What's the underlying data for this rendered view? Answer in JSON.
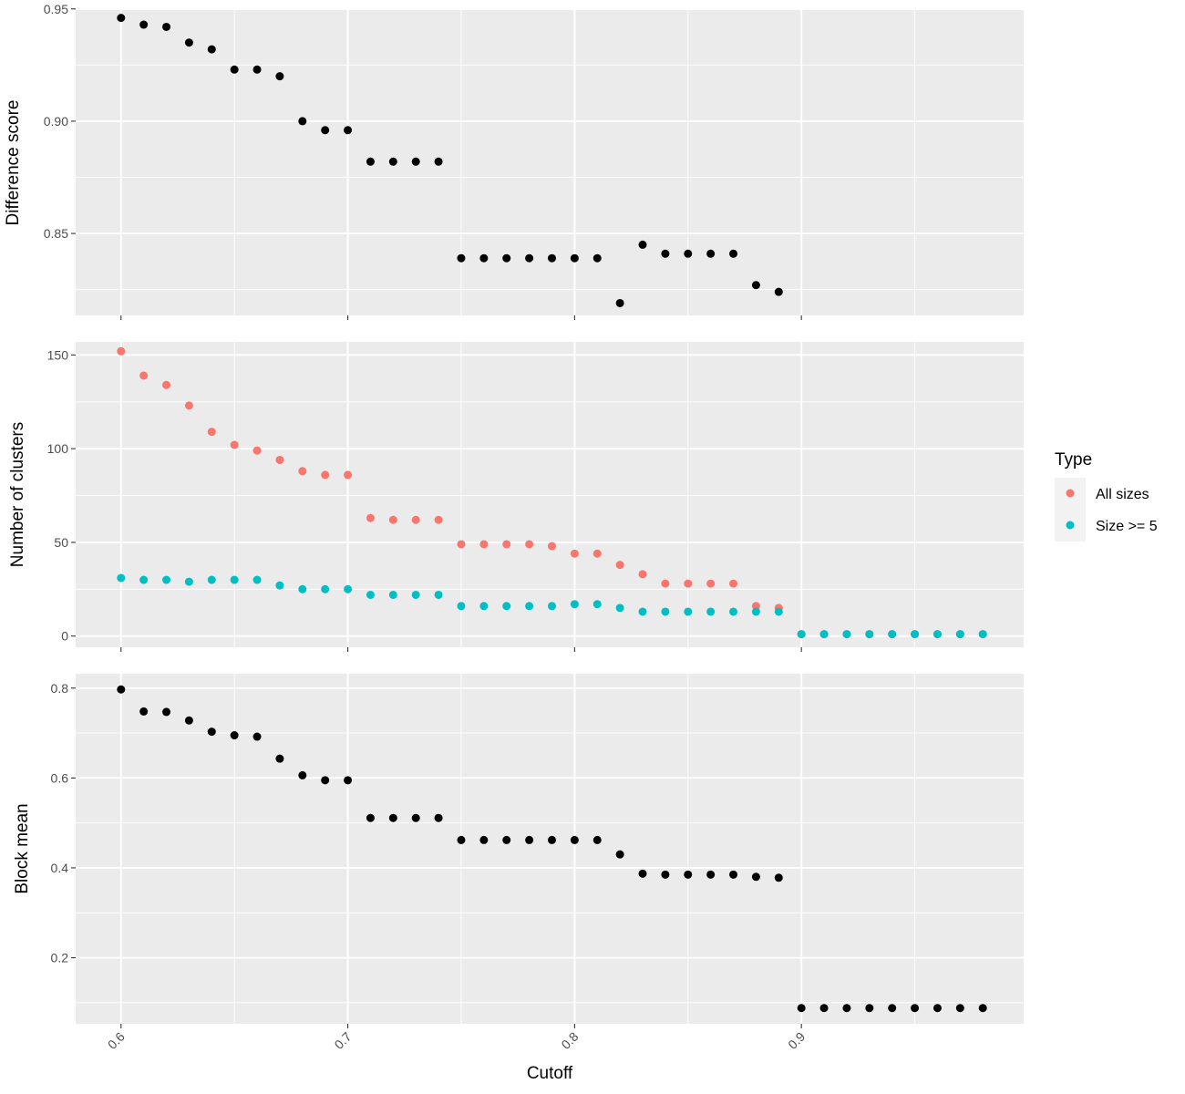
{
  "chart_data": {
    "type": "scatter",
    "xlabel": "Cutoff",
    "x_ticks": [
      "0.6",
      "0.7",
      "0.8",
      "0.9"
    ],
    "xlim": [
      0.58,
      0.998
    ],
    "grid": true,
    "legend": {
      "title": "Type",
      "placement": "right",
      "entries": [
        {
          "label": "All sizes",
          "color": "#F8766D"
        },
        {
          "label": "Size >= 5",
          "color": "#00BFC4"
        }
      ]
    },
    "colors": {
      "panel_bg": "#EBEBEB",
      "grid": "#FFFFFF",
      "tick_text": "#4D4D4D",
      "tick_mark": "#333333",
      "point": "#000000"
    },
    "panels": [
      {
        "ylabel": "Difference score",
        "ylim": [
          0.8135,
          0.9495
        ],
        "y_ticks": [
          "0.85",
          "0.90",
          "0.95"
        ],
        "y_tick_values": [
          0.85,
          0.9,
          0.95
        ],
        "series": [
          {
            "color": "#000000",
            "x": [
              0.6,
              0.61,
              0.62,
              0.63,
              0.64,
              0.65,
              0.66,
              0.67,
              0.68,
              0.69,
              0.7,
              0.71,
              0.72,
              0.73,
              0.74,
              0.75,
              0.76,
              0.77,
              0.78,
              0.79,
              0.8,
              0.81,
              0.82,
              0.83,
              0.84,
              0.85,
              0.86,
              0.87,
              0.88,
              0.89
            ],
            "y": [
              0.946,
              0.943,
              0.942,
              0.935,
              0.932,
              0.923,
              0.923,
              0.92,
              0.9,
              0.896,
              0.896,
              0.882,
              0.882,
              0.882,
              0.882,
              0.839,
              0.839,
              0.839,
              0.839,
              0.839,
              0.839,
              0.839,
              0.819,
              0.845,
              0.841,
              0.841,
              0.841,
              0.841,
              0.827,
              0.824
            ]
          }
        ]
      },
      {
        "ylabel": "Number of clusters",
        "ylim": [
          -6,
          157
        ],
        "y_ticks": [
          "0",
          "50",
          "100",
          "150"
        ],
        "y_tick_values": [
          0,
          50,
          100,
          150
        ],
        "series": [
          {
            "name": "All sizes",
            "color": "#F8766D",
            "x": [
              0.6,
              0.61,
              0.62,
              0.63,
              0.64,
              0.65,
              0.66,
              0.67,
              0.68,
              0.69,
              0.7,
              0.71,
              0.72,
              0.73,
              0.74,
              0.75,
              0.76,
              0.77,
              0.78,
              0.79,
              0.8,
              0.81,
              0.82,
              0.83,
              0.84,
              0.85,
              0.86,
              0.87,
              0.88,
              0.89,
              0.9,
              0.91,
              0.92,
              0.93,
              0.94,
              0.95,
              0.96,
              0.97,
              0.98
            ],
            "y": [
              152,
              139,
              134,
              123,
              109,
              102,
              99,
              94,
              88,
              86,
              86,
              63,
              62,
              62,
              62,
              49,
              49,
              49,
              49,
              48,
              44,
              44,
              38,
              33,
              28,
              28,
              28,
              28,
              16,
              15,
              1,
              1,
              1,
              1,
              1,
              1,
              1,
              1,
              1
            ]
          },
          {
            "name": "Size >= 5",
            "color": "#00BFC4",
            "x": [
              0.6,
              0.61,
              0.62,
              0.63,
              0.64,
              0.65,
              0.66,
              0.67,
              0.68,
              0.69,
              0.7,
              0.71,
              0.72,
              0.73,
              0.74,
              0.75,
              0.76,
              0.77,
              0.78,
              0.79,
              0.8,
              0.81,
              0.82,
              0.83,
              0.84,
              0.85,
              0.86,
              0.87,
              0.88,
              0.89,
              0.9,
              0.91,
              0.92,
              0.93,
              0.94,
              0.95,
              0.96,
              0.97,
              0.98
            ],
            "y": [
              31,
              30,
              30,
              29,
              30,
              30,
              30,
              27,
              25,
              25,
              25,
              22,
              22,
              22,
              22,
              16,
              16,
              16,
              16,
              16,
              17,
              17,
              15,
              13,
              13,
              13,
              13,
              13,
              13,
              13,
              1,
              1,
              1,
              1,
              1,
              1,
              1,
              1,
              1
            ]
          }
        ]
      },
      {
        "ylabel": "Block mean",
        "ylim": [
          0.053,
          0.832
        ],
        "y_ticks": [
          "0.2",
          "0.4",
          "0.6",
          "0.8"
        ],
        "y_tick_values": [
          0.2,
          0.4,
          0.6,
          0.8
        ],
        "series": [
          {
            "color": "#000000",
            "x": [
              0.6,
              0.61,
              0.62,
              0.63,
              0.64,
              0.65,
              0.66,
              0.67,
              0.68,
              0.69,
              0.7,
              0.71,
              0.72,
              0.73,
              0.74,
              0.75,
              0.76,
              0.77,
              0.78,
              0.79,
              0.8,
              0.81,
              0.82,
              0.83,
              0.84,
              0.85,
              0.86,
              0.87,
              0.88,
              0.89,
              0.9,
              0.91,
              0.92,
              0.93,
              0.94,
              0.95,
              0.96,
              0.97,
              0.98
            ],
            "y": [
              0.797,
              0.748,
              0.747,
              0.728,
              0.703,
              0.695,
              0.692,
              0.643,
              0.606,
              0.595,
              0.595,
              0.511,
              0.511,
              0.511,
              0.511,
              0.462,
              0.462,
              0.462,
              0.462,
              0.462,
              0.462,
              0.462,
              0.43,
              0.387,
              0.385,
              0.385,
              0.385,
              0.385,
              0.38,
              0.378,
              0.088,
              0.088,
              0.088,
              0.088,
              0.088,
              0.088,
              0.088,
              0.088,
              0.088
            ]
          }
        ]
      }
    ]
  }
}
